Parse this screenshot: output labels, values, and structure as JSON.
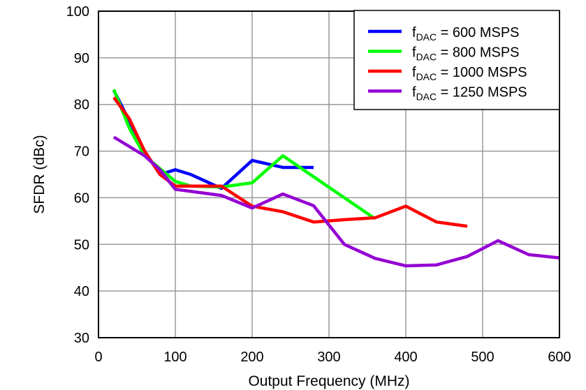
{
  "chart_data": {
    "type": "line",
    "title": "",
    "xlabel": "Output Frequency (MHz)",
    "ylabel": "SFDR (dBc)",
    "xlim": [
      0,
      600
    ],
    "ylim": [
      30,
      100
    ],
    "xticks": [
      0,
      100,
      200,
      300,
      400,
      500,
      600
    ],
    "yticks": [
      30,
      40,
      50,
      60,
      70,
      80,
      90,
      100
    ],
    "grid": true,
    "legend_placement": "top-right",
    "series": [
      {
        "name_main": "f",
        "name_sub": "DAC",
        "name_rest": " = 600 MSPS",
        "color": "#0000ff",
        "x": [
          20,
          40,
          60,
          80,
          100,
          120,
          160,
          200,
          240,
          280
        ],
        "y": [
          83,
          76.5,
          70,
          65,
          66,
          65,
          62,
          68,
          66.5,
          66.5
        ]
      },
      {
        "name_main": "f",
        "name_sub": "DAC",
        "name_rest": " = 800 MSPS",
        "color": "#00ff00",
        "x": [
          20,
          40,
          60,
          100,
          120,
          160,
          200,
          240,
          280,
          320,
          360
        ],
        "y": [
          83.2,
          75,
          69,
          63.5,
          62.5,
          62.3,
          63.2,
          69,
          64.5,
          60,
          55.5
        ]
      },
      {
        "name_main": "f",
        "name_sub": "DAC",
        "name_rest": " = 1000 MSPS",
        "color": "#ff0000",
        "x": [
          20,
          40,
          60,
          80,
          100,
          160,
          200,
          240,
          280,
          320,
          360,
          400,
          440,
          480
        ],
        "y": [
          81.5,
          77,
          70,
          65,
          62.5,
          62.5,
          58.2,
          57,
          54.8,
          55.3,
          55.7,
          58.2,
          54.8,
          53.9
        ]
      },
      {
        "name_main": "f",
        "name_sub": "DAC",
        "name_rest": " = 1250 MSPS",
        "color": "#9400d3",
        "x": [
          20,
          40,
          60,
          80,
          100,
          160,
          200,
          240,
          280,
          320,
          360,
          400,
          440,
          480,
          520,
          560,
          600
        ],
        "y": [
          73,
          71,
          69,
          66,
          61.8,
          60.5,
          57.8,
          60.8,
          58.3,
          50,
          47,
          45.4,
          45.6,
          47.4,
          50.8,
          47.8,
          47.1
        ]
      }
    ]
  }
}
